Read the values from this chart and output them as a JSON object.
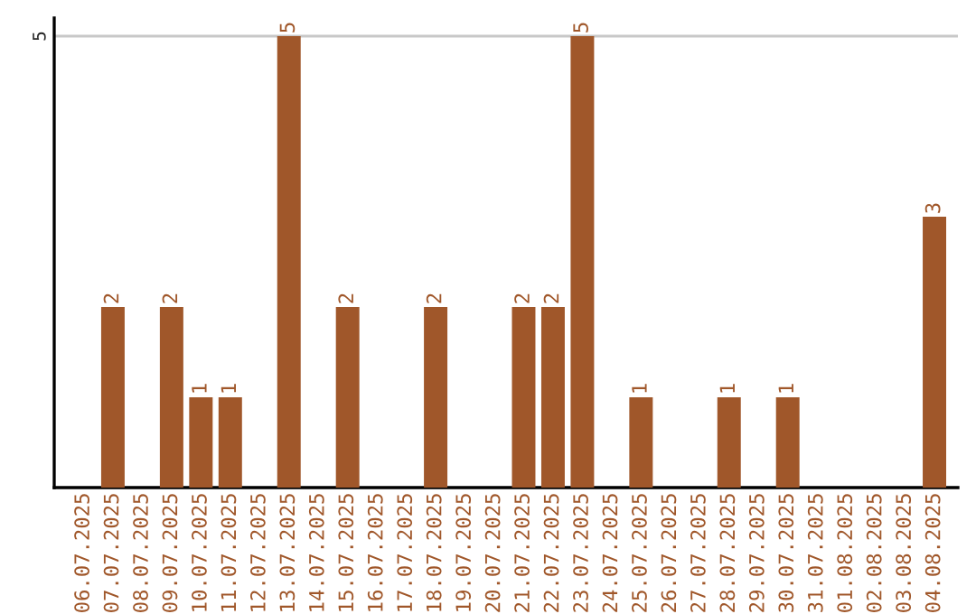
{
  "chart_data": {
    "type": "bar",
    "categories": [
      "06.07.2025",
      "07.07.2025",
      "08.07.2025",
      "09.07.2025",
      "10.07.2025",
      "11.07.2025",
      "12.07.2025",
      "13.07.2025",
      "14.07.2025",
      "15.07.2025",
      "16.07.2025",
      "17.07.2025",
      "18.07.2025",
      "19.07.2025",
      "20.07.2025",
      "21.07.2025",
      "22.07.2025",
      "23.07.2025",
      "24.07.2025",
      "25.07.2025",
      "26.07.2025",
      "27.07.2025",
      "28.07.2025",
      "29.07.2025",
      "30.07.2025",
      "31.07.2025",
      "01.08.2025",
      "02.08.2025",
      "03.08.2025",
      "04.08.2025"
    ],
    "values": [
      0,
      2,
      0,
      2,
      1,
      1,
      0,
      5,
      0,
      2,
      0,
      0,
      2,
      0,
      0,
      2,
      2,
      5,
      0,
      1,
      0,
      0,
      1,
      0,
      1,
      0,
      0,
      0,
      0,
      3
    ],
    "value_labels": [
      null,
      "2",
      null,
      "2",
      "1",
      "1",
      null,
      "5",
      null,
      "2",
      null,
      null,
      "2",
      null,
      null,
      "2",
      "2",
      "5",
      null,
      "1",
      null,
      null,
      "1",
      null,
      "1",
      null,
      null,
      null,
      null,
      "3"
    ],
    "color": "#a0572a",
    "ylim": [
      0,
      5.2
    ],
    "yticks": [
      5
    ],
    "grid": "y",
    "legend": false
  }
}
